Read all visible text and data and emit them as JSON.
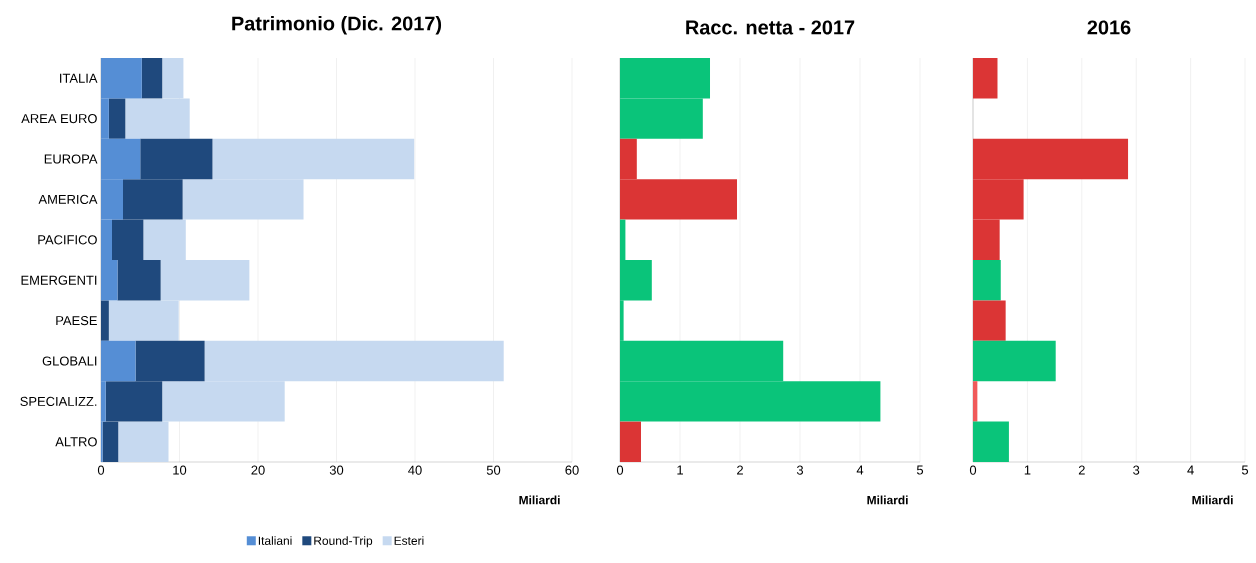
{
  "chart_data": [
    {
      "type": "bar",
      "title": "Patrimonio (Dic. 2017)",
      "xlabel": "Miliardi",
      "orientation": "horizontal",
      "stacked": true,
      "categories": [
        "ITALIA",
        "AREA EURO",
        "EUROPA",
        "AMERICA",
        "PACIFICO",
        "EMERGENTI",
        "PAESE",
        "GLOBALI",
        "SPECIALIZZ.",
        "ALTRO"
      ],
      "series": [
        {
          "name": "Italiani",
          "color": "#558ed5",
          "values": [
            5.2,
            1.0,
            5.0,
            2.8,
            1.4,
            2.1,
            0,
            4.4,
            0.6,
            0.2
          ]
        },
        {
          "name": "Round-Trip",
          "color": "#1f497d",
          "values": [
            2.6,
            2.1,
            9.2,
            7.6,
            4.0,
            5.5,
            1.0,
            8.8,
            7.2,
            2.0
          ]
        },
        {
          "name": "Esteri",
          "color": "#c6d9f0",
          "values": [
            2.7,
            8.2,
            25.7,
            15.4,
            5.4,
            11.3,
            8.9,
            38.1,
            15.6,
            6.4
          ]
        }
      ],
      "xlim": [
        0,
        60
      ],
      "xticks": [
        0,
        10,
        20,
        30,
        40,
        50,
        60
      ],
      "grid": "x",
      "legend": "bottom"
    },
    {
      "type": "bar",
      "title": "Racc. netta - 2017",
      "xlabel": "Miliardi",
      "orientation": "horizontal",
      "categories": [
        null,
        null,
        null,
        null,
        null,
        null,
        null,
        null,
        null,
        null
      ],
      "values": [
        1.5,
        1.38,
        0.28,
        1.95,
        0.09,
        0.53,
        0.06,
        2.72,
        4.34,
        0.35
      ],
      "colors": [
        "#0ac47a",
        "#0ac47a",
        "#db3535",
        "#db3535",
        "#0ac47a",
        "#0ac47a",
        "#0ac47a",
        "#0ac47a",
        "#0ac47a",
        "#db3535"
      ],
      "xlim": [
        0,
        5
      ],
      "xticks": [
        0,
        1,
        2,
        3,
        4,
        5
      ],
      "grid": "x"
    },
    {
      "type": "bar",
      "title": "2016",
      "xlabel": "Miliardi",
      "orientation": "horizontal",
      "categories": [
        null,
        null,
        null,
        null,
        null,
        null,
        null,
        null,
        null,
        null
      ],
      "values": [
        0.45,
        null,
        2.85,
        0.93,
        0.49,
        0.51,
        0.6,
        1.52,
        0.08,
        0.66
      ],
      "colors": [
        "#db3535",
        null,
        "#db3535",
        "#db3535",
        "#db3535",
        "#0ac47a",
        "#db3535",
        "#0ac47a",
        "#f05a5a",
        "#0ac47a"
      ],
      "xlim": [
        0,
        5
      ],
      "xticks": [
        0,
        1,
        2,
        3,
        4,
        5
      ],
      "grid": "x"
    }
  ]
}
